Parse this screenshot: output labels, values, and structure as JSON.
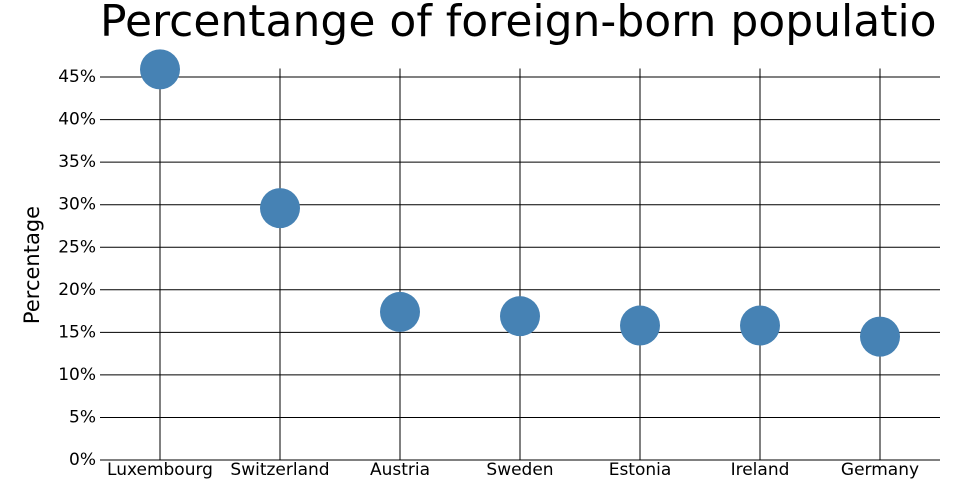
{
  "chart_data": {
    "type": "scatter",
    "title": "Percentange of foreign-born populatio",
    "y_label": "Percentage",
    "categories": [
      "Luxembourg",
      "Switzerland",
      "Austria",
      "Sweden",
      "Estonia",
      "Ireland",
      "Germany"
    ],
    "values": [
      45.9,
      29.6,
      17.4,
      16.9,
      15.8,
      15.8,
      14.5
    ],
    "color": "#4682b4",
    "ylim": [
      0,
      46
    ],
    "yticks": [
      {
        "value": 0,
        "label": "0%"
      },
      {
        "value": 5,
        "label": "5%"
      },
      {
        "value": 10,
        "label": "10%"
      },
      {
        "value": 15,
        "label": "15%"
      },
      {
        "value": 20,
        "label": "20%"
      },
      {
        "value": 25,
        "label": "25%"
      },
      {
        "value": 30,
        "label": "30%"
      },
      {
        "value": 35,
        "label": "35%"
      },
      {
        "value": 40,
        "label": "40%"
      },
      {
        "value": 45,
        "label": "45%"
      }
    ],
    "grid": true
  }
}
